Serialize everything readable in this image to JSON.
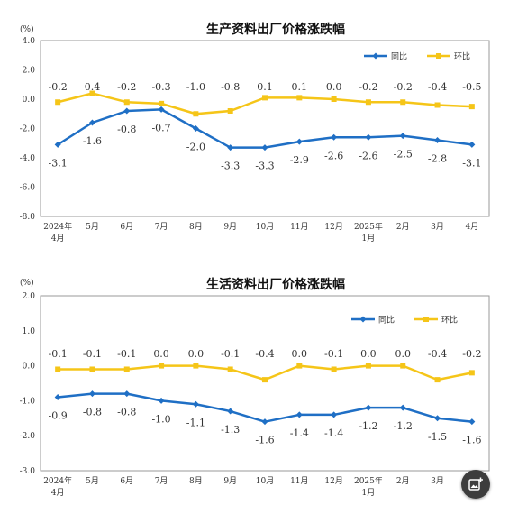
{
  "colors": {
    "yoy": "#1f6fc5",
    "mom": "#f5c518",
    "axis": "#999999",
    "text": "#333333"
  },
  "fab": {
    "icon": "image-edit-icon"
  },
  "chart_data": [
    {
      "type": "line",
      "title": "生产资料出厂价格涨跌幅",
      "unit_label": "(%)",
      "categories": [
        [
          "2024年",
          "4月"
        ],
        [
          "5月"
        ],
        [
          "6月"
        ],
        [
          "7月"
        ],
        [
          "8月"
        ],
        [
          "9月"
        ],
        [
          "10月"
        ],
        [
          "11月"
        ],
        [
          "12月"
        ],
        [
          "2025年",
          "1月"
        ],
        [
          "2月"
        ],
        [
          "3月"
        ],
        [
          "4月"
        ]
      ],
      "y_ticks": [
        "4.0",
        "2.0",
        "0.0",
        "-2.0",
        "-4.0",
        "-6.0",
        "-8.0"
      ],
      "ylim": [
        -8,
        4
      ],
      "grid": false,
      "legend_position": "top-right",
      "series": [
        {
          "name": "同比",
          "color_key": "yoy",
          "marker": "diamond",
          "values": [
            -3.1,
            -1.6,
            -0.8,
            -0.7,
            -2.0,
            -3.3,
            -3.3,
            -2.9,
            -2.6,
            -2.6,
            -2.5,
            -2.8,
            -3.1
          ],
          "labels": [
            "-3.1",
            "-1.6",
            "-0.8",
            "-0.7",
            "-2.0",
            "-3.3",
            "-3.3",
            "-2.9",
            "-2.6",
            "-2.6",
            "-2.5",
            "-2.8",
            "-3.1"
          ]
        },
        {
          "name": "环比",
          "color_key": "mom",
          "marker": "square",
          "values": [
            -0.2,
            0.4,
            -0.2,
            -0.3,
            -1.0,
            -0.8,
            0.1,
            0.1,
            0.0,
            -0.2,
            -0.2,
            -0.4,
            -0.5
          ],
          "labels": [
            "-0.2",
            "0.4",
            "-0.2",
            "-0.3",
            "-1.0",
            "-0.8",
            "0.1",
            "0.1",
            "0.0",
            "-0.2",
            "-0.2",
            "-0.4",
            "-0.5"
          ]
        }
      ]
    },
    {
      "type": "line",
      "title": "生活资料出厂价格涨跌幅",
      "unit_label": "(%)",
      "categories": [
        [
          "2024年",
          "4月"
        ],
        [
          "5月"
        ],
        [
          "6月"
        ],
        [
          "7月"
        ],
        [
          "8月"
        ],
        [
          "9月"
        ],
        [
          "10月"
        ],
        [
          "11月"
        ],
        [
          "12月"
        ],
        [
          "2025年",
          "1月"
        ],
        [
          "2月"
        ],
        [
          "3月"
        ],
        [
          "4月"
        ]
      ],
      "y_ticks": [
        "2.0",
        "1.0",
        "0.0",
        "-1.0",
        "-2.0",
        "-3.0"
      ],
      "ylim": [
        -3,
        2
      ],
      "grid": false,
      "legend_position": "top-right",
      "series": [
        {
          "name": "同比",
          "color_key": "yoy",
          "marker": "diamond",
          "values": [
            -0.9,
            -0.8,
            -0.8,
            -1.0,
            -1.1,
            -1.3,
            -1.6,
            -1.4,
            -1.4,
            -1.2,
            -1.2,
            -1.5,
            -1.6
          ],
          "labels": [
            "-0.9",
            "-0.8",
            "-0.8",
            "-1.0",
            "-1.1",
            "-1.3",
            "-1.6",
            "-1.4",
            "-1.4",
            "-1.2",
            "-1.2",
            "-1.5",
            "-1.6"
          ]
        },
        {
          "name": "环比",
          "color_key": "mom",
          "marker": "square",
          "values": [
            -0.1,
            -0.1,
            -0.1,
            0.0,
            0.0,
            -0.1,
            -0.4,
            0.0,
            -0.1,
            0.0,
            0.0,
            -0.4,
            -0.2
          ],
          "labels": [
            "-0.1",
            "-0.1",
            "-0.1",
            "0.0",
            "0.0",
            "-0.1",
            "-0.4",
            "0.0",
            "-0.1",
            "0.0",
            "0.0",
            "-0.4",
            "-0.2"
          ]
        }
      ]
    }
  ]
}
